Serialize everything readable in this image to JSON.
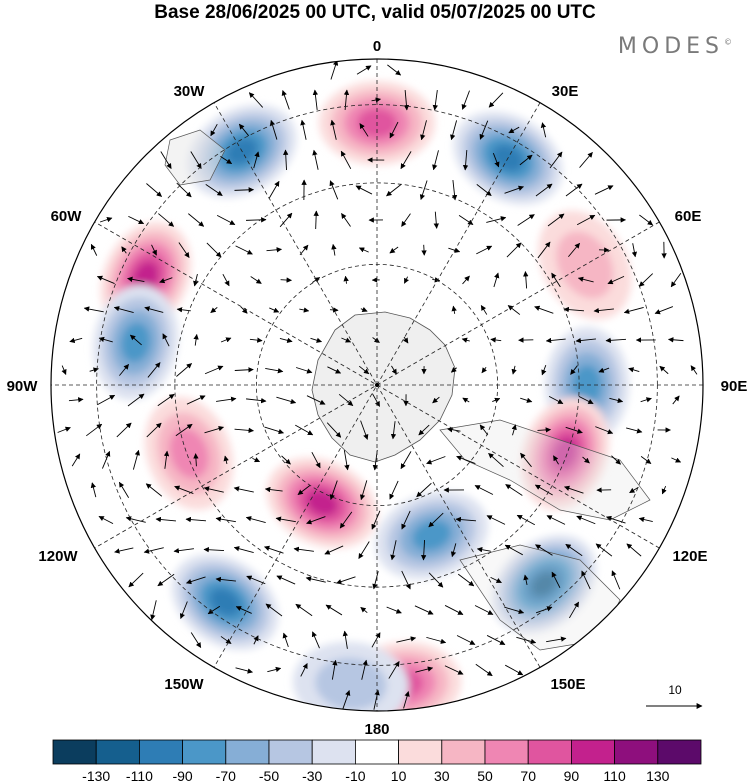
{
  "title": "Base 28/06/2025 00 UTC, valid 05/07/2025 00 UTC",
  "brand": "MODES",
  "brand_mark": "©",
  "longitude_labels": {
    "lon_0": "0",
    "lon_30e": "30E",
    "lon_60e": "60E",
    "lon_90e": "90E",
    "lon_120e": "120E",
    "lon_150e": "150E",
    "lon_180": "180",
    "lon_150w": "150W",
    "lon_120w": "120W",
    "lon_90w": "90W",
    "lon_60w": "60W",
    "lon_30w": "30W"
  },
  "vector_reference": {
    "label": "10",
    "value": 10
  },
  "colorbar": {
    "tick_labels": [
      "-130",
      "-110",
      "-90",
      "-70",
      "-50",
      "-30",
      "-10",
      "10",
      "30",
      "50",
      "70",
      "90",
      "110",
      "130"
    ],
    "colors": [
      "#0b3d5e",
      "#155f8e",
      "#2e7db5",
      "#4b97c8",
      "#86aed6",
      "#b6c6e2",
      "#dde2f0",
      "#ffffff",
      "#fbdcdc",
      "#f6b6c4",
      "#ef86b3",
      "#e0559f",
      "#c3218d",
      "#8e0f7d",
      "#5c0a6a"
    ]
  },
  "anomaly_centers": [
    {
      "lon": 0,
      "value": 70
    },
    {
      "lon": 30,
      "value": -90
    },
    {
      "lon": 60,
      "value": 40
    },
    {
      "lon": 90,
      "value": -80
    },
    {
      "lon": 110,
      "value": 100
    },
    {
      "lon": 140,
      "value": -110
    },
    {
      "lon": 175,
      "value": 80
    },
    {
      "lon": -145,
      "value": -90
    },
    {
      "lon": -110,
      "value": 60
    },
    {
      "lon": -65,
      "value": 100
    },
    {
      "lon": -80,
      "value": -80
    },
    {
      "lon": -30,
      "value": -90
    },
    {
      "lon": -155,
      "value": 100
    },
    {
      "lon": 160,
      "value": -80
    },
    {
      "lon": -175,
      "value": -40
    }
  ]
}
